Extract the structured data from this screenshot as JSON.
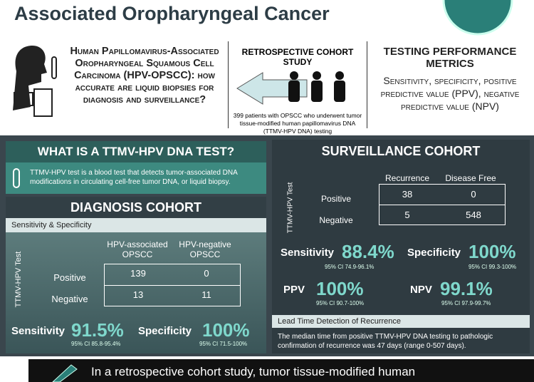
{
  "header": {
    "title": "Associated Oropharyngeal Cancer"
  },
  "intro": {
    "question": "Human Papillomavirus-Associated Oropharyngeal Squamous Cell Carcinoma (HPV-OPSCC): how accurate are liquid biopsies for diagnosis and surveillance?"
  },
  "study": {
    "label": "Retrospective Cohort Study",
    "description": "399 patients with OPSCC who underwent tumor tissue-modified human papillomavirus DNA (TTMV-HPV DNA) testing"
  },
  "metrics": {
    "title": "Testing Performance Metrics",
    "description": "Sensitivity, specificity, positive predictive value (PPV), negative predictive value (NPV)"
  },
  "ttmv": {
    "title": "What is a TTMV-HPV DNA test?",
    "description": "TTMV-HPV test is a blood test that detects tumor-associated DNA modifications in circulating cell-free tumor DNA, or liquid biopsy."
  },
  "diagnosis": {
    "title": "Diagnosis Cohort",
    "subtitle": "Sensitivity & Specificity",
    "table": {
      "axis_label": "TTMV-HPV Test",
      "columns": [
        "HPV-associated OPSCC",
        "HPV-negative OPSCC"
      ],
      "rows": [
        {
          "label": "Positive",
          "values": [
            139,
            0
          ]
        },
        {
          "label": "Negative",
          "values": [
            13,
            11
          ]
        }
      ]
    },
    "stats": [
      {
        "label": "Sensitivity",
        "value": "91.5%",
        "ci": "95% CI 85.8-95.4%"
      },
      {
        "label": "Specificity",
        "value": "100%",
        "ci": "95% CI 71.5-100%"
      }
    ]
  },
  "surveillance": {
    "title": "Surveillance Cohort",
    "table": {
      "axis_label": "TTMV-HPV Test",
      "columns": [
        "Recurrence",
        "Disease Free"
      ],
      "rows": [
        {
          "label": "Positive",
          "values": [
            38,
            0
          ]
        },
        {
          "label": "Negative",
          "values": [
            5,
            548
          ]
        }
      ]
    },
    "stats": [
      {
        "label": "Sensitivity",
        "value": "88.4%",
        "ci": "95% CI 74.9-96.1%"
      },
      {
        "label": "Specificity",
        "value": "100%",
        "ci": "95% CI 99.3-100%"
      },
      {
        "label": "PPV",
        "value": "100%",
        "ci": "95% CI 90.7-100%"
      },
      {
        "label": "NPV",
        "value": "99.1%",
        "ci": "95% CI 97.9-99.7%"
      }
    ]
  },
  "lead_time": {
    "title": "Lead Time Detection of Recurrence",
    "text": "The median time from positive TTMV-HPV DNA testing to pathologic confirmation of recurrence was 47 days (range 0-507 days)."
  },
  "footer": {
    "text": "In a retrospective cohort study, tumor tissue-modified human"
  }
}
